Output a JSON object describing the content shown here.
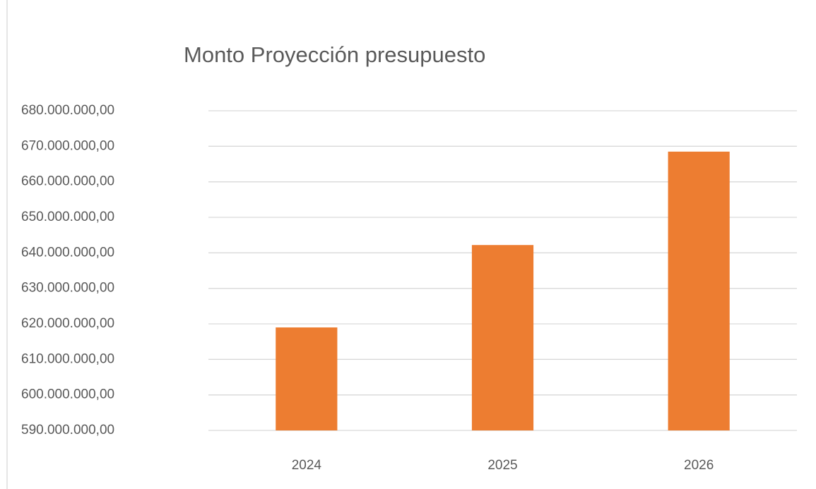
{
  "chart_data": {
    "type": "bar",
    "title": "Monto Proyección presupuesto",
    "categories": [
      "2024",
      "2025",
      "2026"
    ],
    "values": [
      619000000,
      642200000,
      668500000
    ],
    "color": "#ed7d31",
    "ylim": [
      590000000,
      680000000
    ],
    "yticks": [
      {
        "value": 590000000,
        "label": "590.000.000,00"
      },
      {
        "value": 600000000,
        "label": "600.000.000,00"
      },
      {
        "value": 610000000,
        "label": "610.000.000,00"
      },
      {
        "value": 620000000,
        "label": "620.000.000,00"
      },
      {
        "value": 630000000,
        "label": "630.000.000,00"
      },
      {
        "value": 640000000,
        "label": "640.000.000,00"
      },
      {
        "value": 650000000,
        "label": "650.000.000,00"
      },
      {
        "value": 660000000,
        "label": "660.000.000,00"
      },
      {
        "value": 670000000,
        "label": "670.000.000,00"
      },
      {
        "value": 680000000,
        "label": "680.000.000,00"
      }
    ],
    "grid": true
  }
}
